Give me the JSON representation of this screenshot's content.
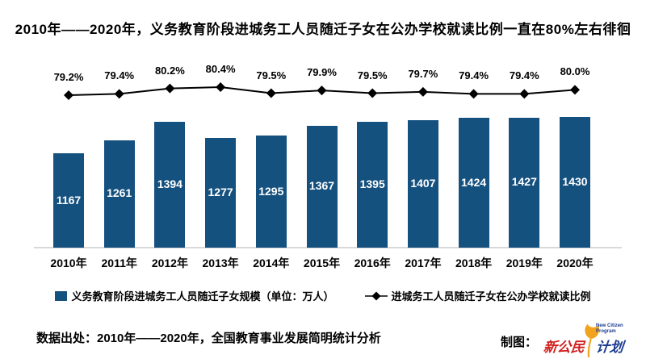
{
  "title": "2010年——2020年，义务教育阶段进城务工人员随迁子女在公办学校就读比例一直在80%左右徘徊",
  "chart_data": {
    "type": "combo",
    "categories": [
      "2010年",
      "2011年",
      "2012年",
      "2013年",
      "2014年",
      "2015年",
      "2016年",
      "2017年",
      "2018年",
      "2019年",
      "2020年"
    ],
    "series": [
      {
        "name": "义务教育阶段进城务工人员随迁子女规模（单位：万人）",
        "type": "bar",
        "values": [
          1167,
          1261,
          1394,
          1277,
          1295,
          1367,
          1395,
          1407,
          1424,
          1427,
          1430
        ],
        "color": "#15517f",
        "value_labels": "inside-white"
      },
      {
        "name": "进城务工人员随迁子女在公办学校就读比例",
        "type": "line",
        "values": [
          79.2,
          79.4,
          80.2,
          80.4,
          79.5,
          79.9,
          79.5,
          79.7,
          79.4,
          79.4,
          80.0
        ],
        "unit": "%",
        "color": "#000000",
        "marker": "diamond"
      }
    ],
    "legend_position": "bottom",
    "grid": false,
    "y_axis_visible": false,
    "x_axis_line_color": "#d9d9d9"
  },
  "legend": {
    "bar_label": "义务教育阶段进城务工人员随迁子女规模（单位：万人）",
    "line_label": "进城务工人员随迁子女在公办学校就读比例"
  },
  "footer": {
    "source": "数据出处：2010年——2020年，全国教育事业发展简明统计分析",
    "credit_label": "制图：",
    "logo": {
      "text_red": "新公民",
      "text_blue": "计划",
      "text_english": "New Citizen Program",
      "leaf_color": "#f2a31e",
      "red": "#d0211f",
      "blue": "#1b3d91"
    }
  },
  "colors": {
    "bar": "#15517f",
    "line": "#000000",
    "axis": "#d9d9d9",
    "text": "#000000",
    "bar_value_text": "#ffffff"
  }
}
